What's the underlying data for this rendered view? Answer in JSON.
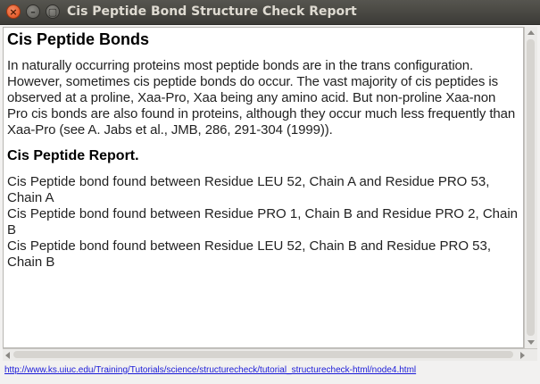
{
  "window": {
    "title": "Cis Peptide Bond Structure Check Report",
    "close_glyph": "×",
    "minimize_glyph": "–",
    "maximize_glyph": "▢"
  },
  "document": {
    "heading": "Cis Peptide Bonds",
    "intro": "In naturally occurring proteins most peptide bonds are in the trans configuration. However, sometimes cis peptide bonds do occur. The vast majority of cis peptides is observed at a proline, Xaa-Pro, Xaa being any amino acid. But non-proline Xaa-non Pro cis bonds are also found in proteins, although they occur much less frequently than Xaa-Pro (see A. Jabs et al., JMB, 286, 291-304 (1999)).",
    "report_heading": "Cis Peptide Report.",
    "findings": [
      "Cis Peptide bond found between Residue LEU 52, Chain A and Residue  PRO 53, Chain A",
      "Cis Peptide bond found between Residue PRO 1, Chain B and Residue  PRO 2, Chain B",
      "Cis Peptide bond found between Residue LEU 52, Chain B and Residue  PRO 53, Chain B"
    ]
  },
  "status": {
    "url": "http://www.ks.uiuc.edu/Training/Tutorials/science/structurecheck/tutorial_structurecheck-html/node4.html"
  }
}
